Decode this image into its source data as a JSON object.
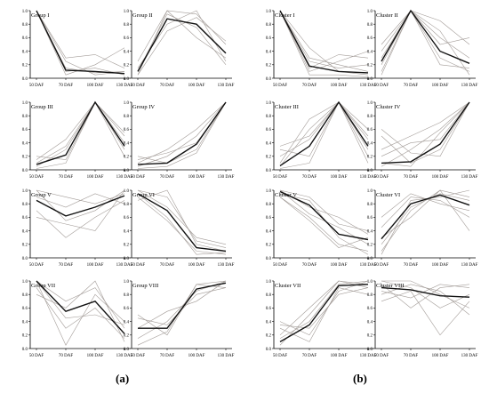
{
  "captions": {
    "a": "(a)",
    "b": "(b)"
  },
  "colors": {
    "profile": "#a39c98",
    "mean": "#111111",
    "axis": "#000000"
  },
  "chart_data": [
    {
      "type": "line",
      "panel": "a",
      "title": "Group I",
      "categories": [
        "50 DAF",
        "70 DAF",
        "100 DAF",
        "130 DAF"
      ],
      "ylim": [
        0,
        1.0
      ],
      "yticks": [
        0.0,
        0.2,
        0.4,
        0.6,
        0.8,
        1.0
      ],
      "mean": [
        1.0,
        0.12,
        0.1,
        0.07
      ],
      "profiles": [
        [
          1,
          0.1,
          0.15,
          0.05
        ],
        [
          1,
          0.25,
          0.05,
          0.1
        ],
        [
          1,
          0.05,
          0.2,
          0.45
        ],
        [
          1,
          0.3,
          0.35,
          0.15
        ],
        [
          1,
          0.15,
          0.08,
          0.1
        ]
      ]
    },
    {
      "type": "line",
      "panel": "a",
      "title": "Group II",
      "categories": [
        "50 DAF",
        "70 DAF",
        "100 DAF",
        "130 DAF"
      ],
      "ylim": [
        0,
        1.0
      ],
      "yticks": [
        0.0,
        0.2,
        0.4,
        0.6,
        0.8,
        1.0
      ],
      "mean": [
        0.1,
        0.88,
        0.8,
        0.37
      ],
      "profiles": [
        [
          0.05,
          1.0,
          0.95,
          0.5
        ],
        [
          0.15,
          0.8,
          1.0,
          0.25
        ],
        [
          0.25,
          1.0,
          0.6,
          0.3
        ],
        [
          0.05,
          0.7,
          0.9,
          0.55
        ],
        [
          0.1,
          0.95,
          0.75,
          0.2
        ]
      ]
    },
    {
      "type": "line",
      "panel": "a",
      "title": "Group III",
      "categories": [
        "50 DAF",
        "70 DAF",
        "100 DAF",
        "130 DAF"
      ],
      "ylim": [
        0,
        1.0
      ],
      "yticks": [
        0.0,
        0.2,
        0.4,
        0.6,
        0.8,
        1.0
      ],
      "mean": [
        0.08,
        0.22,
        1.0,
        0.35
      ],
      "profiles": [
        [
          0.05,
          0.3,
          1,
          0.5
        ],
        [
          0.15,
          0.45,
          1,
          0.2
        ],
        [
          0.02,
          0.1,
          1,
          0.4
        ],
        [
          0.2,
          0.15,
          1,
          0.3
        ],
        [
          0.1,
          0.35,
          1,
          0.55
        ]
      ]
    },
    {
      "type": "line",
      "panel": "a",
      "title": "Group IV",
      "categories": [
        "50 DAF",
        "70 DAF",
        "100 DAF",
        "130 DAF"
      ],
      "ylim": [
        0,
        1.0
      ],
      "yticks": [
        0.0,
        0.2,
        0.4,
        0.6,
        0.8,
        1.0
      ],
      "mean": [
        0.08,
        0.1,
        0.38,
        1.0
      ],
      "profiles": [
        [
          0.05,
          0.2,
          0.5,
          1
        ],
        [
          0.2,
          0.1,
          0.3,
          1
        ],
        [
          0.1,
          0.3,
          0.6,
          1
        ],
        [
          0.02,
          0.05,
          0.25,
          1
        ],
        [
          0.15,
          0.25,
          0.4,
          1
        ]
      ]
    },
    {
      "type": "line",
      "panel": "a",
      "title": "Group V",
      "categories": [
        "50 DAF",
        "70 DAF",
        "100 DAF",
        "130 DAF"
      ],
      "ylim": [
        0,
        1.0
      ],
      "yticks": [
        0.0,
        0.2,
        0.4,
        0.6,
        0.8,
        1.0
      ],
      "mean": [
        0.85,
        0.62,
        0.75,
        0.92
      ],
      "profiles": [
        [
          1,
          0.55,
          0.7,
          1
        ],
        [
          0.7,
          0.3,
          0.6,
          0.85
        ],
        [
          0.9,
          0.75,
          0.95,
          0.8
        ],
        [
          0.6,
          0.5,
          0.4,
          1
        ],
        [
          1,
          0.9,
          0.8,
          0.95
        ]
      ]
    },
    {
      "type": "line",
      "panel": "a",
      "title": "Group VI",
      "categories": [
        "50 DAF",
        "70 DAF",
        "100 DAF",
        "130 DAF"
      ],
      "ylim": [
        0,
        1.0
      ],
      "yticks": [
        0.0,
        0.2,
        0.4,
        0.6,
        0.8,
        1.0
      ],
      "mean": [
        0.95,
        0.7,
        0.15,
        0.1
      ],
      "profiles": [
        [
          1,
          0.9,
          0.25,
          0.15
        ],
        [
          0.9,
          0.55,
          0.1,
          0.05
        ],
        [
          1,
          0.75,
          0.3,
          0.2
        ],
        [
          0.85,
          1.0,
          0.2,
          0.1
        ],
        [
          0.95,
          0.6,
          0.05,
          0.08
        ]
      ]
    },
    {
      "type": "line",
      "panel": "a",
      "title": "Group VII",
      "categories": [
        "50 DAF",
        "70 DAF",
        "100 DAF",
        "130 DAF"
      ],
      "ylim": [
        0,
        1.0
      ],
      "yticks": [
        0.0,
        0.2,
        0.4,
        0.6,
        0.8,
        1.0
      ],
      "mean": [
        1.0,
        0.55,
        0.7,
        0.22
      ],
      "profiles": [
        [
          1,
          0.7,
          0.9,
          0.3
        ],
        [
          0.9,
          0.3,
          0.6,
          0.15
        ],
        [
          1,
          0.05,
          0.8,
          0.4
        ],
        [
          0.8,
          0.6,
          1.0,
          0.1
        ],
        [
          1,
          0.45,
          0.5,
          0.35
        ]
      ]
    },
    {
      "type": "line",
      "panel": "a",
      "title": "Group VIII",
      "categories": [
        "50 DAF",
        "70 DAF",
        "100 DAF",
        "130 DAF"
      ],
      "ylim": [
        0,
        1.0
      ],
      "yticks": [
        0.0,
        0.2,
        0.4,
        0.6,
        0.8,
        1.0
      ],
      "mean": [
        0.3,
        0.3,
        0.88,
        0.97
      ],
      "profiles": [
        [
          0.15,
          0.4,
          0.85,
          1
        ],
        [
          0.5,
          0.2,
          0.95,
          0.9
        ],
        [
          0.3,
          0.55,
          0.7,
          1
        ],
        [
          0.05,
          0.25,
          0.95,
          1
        ],
        [
          0.45,
          0.35,
          0.8,
          0.9
        ]
      ]
    },
    {
      "type": "line",
      "panel": "b",
      "title": "Cluster I",
      "categories": [
        "50 DAF",
        "70 DAF",
        "100 DAF",
        "130 DAF"
      ],
      "ylim": [
        0,
        1.0
      ],
      "yticks": [
        0.0,
        0.2,
        0.4,
        0.6,
        0.8,
        1.0
      ],
      "mean": [
        1.0,
        0.18,
        0.1,
        0.08
      ],
      "profiles": [
        [
          1,
          0.05,
          0.05,
          0.02
        ],
        [
          1,
          0.3,
          0.2,
          0.1
        ],
        [
          1,
          0.45,
          0.1,
          0.05
        ],
        [
          1,
          0.15,
          0.35,
          0.3
        ],
        [
          1,
          0.25,
          0.15,
          0.2
        ],
        [
          1,
          0.1,
          0.25,
          0.4
        ]
      ]
    },
    {
      "type": "line",
      "panel": "b",
      "title": "Cluster II",
      "categories": [
        "50 DAF",
        "70 DAF",
        "100 DAF",
        "130 DAF"
      ],
      "ylim": [
        0,
        1.0
      ],
      "yticks": [
        0.0,
        0.2,
        0.4,
        0.6,
        0.8,
        1.0
      ],
      "mean": [
        0.25,
        1.0,
        0.4,
        0.22
      ],
      "profiles": [
        [
          0.1,
          1,
          0.6,
          0.3
        ],
        [
          0.5,
          1,
          0.3,
          0.1
        ],
        [
          0.3,
          1,
          0.85,
          0.5
        ],
        [
          0.05,
          1,
          0.2,
          0.15
        ],
        [
          0.4,
          1,
          0.5,
          0.6
        ],
        [
          0.2,
          1,
          0.7,
          0.05
        ]
      ]
    },
    {
      "type": "line",
      "panel": "b",
      "title": "Cluster III",
      "categories": [
        "50 DAF",
        "70 DAF",
        "100 DAF",
        "130 DAF"
      ],
      "ylim": [
        0,
        1.0
      ],
      "yticks": [
        0.0,
        0.2,
        0.4,
        0.6,
        0.8,
        1.0
      ],
      "mean": [
        0.06,
        0.35,
        1.0,
        0.35
      ],
      "profiles": [
        [
          0.05,
          0.6,
          1,
          0.5
        ],
        [
          0.3,
          0.2,
          1,
          0.2
        ],
        [
          0.1,
          0.75,
          1,
          0.6
        ],
        [
          0.2,
          0.45,
          1,
          0.1
        ],
        [
          0.02,
          0.1,
          1,
          0.45
        ],
        [
          0.35,
          0.5,
          1,
          0.3
        ]
      ]
    },
    {
      "type": "line",
      "panel": "b",
      "title": "Cluster IV",
      "categories": [
        "50 DAF",
        "70 DAF",
        "100 DAF",
        "130 DAF"
      ],
      "ylim": [
        0,
        1.0
      ],
      "yticks": [
        0.0,
        0.2,
        0.4,
        0.6,
        0.8,
        1.0
      ],
      "mean": [
        0.1,
        0.12,
        0.38,
        1.0
      ],
      "profiles": [
        [
          0.05,
          0.3,
          0.6,
          1
        ],
        [
          0.5,
          0.1,
          0.3,
          1
        ],
        [
          0.2,
          0.4,
          0.45,
          1
        ],
        [
          0.6,
          0.25,
          0.2,
          1
        ],
        [
          0.1,
          0.05,
          0.55,
          1
        ],
        [
          0.3,
          0.5,
          0.7,
          1
        ]
      ]
    },
    {
      "type": "line",
      "panel": "b",
      "title": "Cluster V",
      "categories": [
        "50 DAF",
        "70 DAF",
        "100 DAF",
        "130 DAF"
      ],
      "ylim": [
        0,
        1.0
      ],
      "yticks": [
        0.0,
        0.2,
        0.4,
        0.6,
        0.8,
        1.0
      ],
      "mean": [
        0.98,
        0.78,
        0.35,
        0.27
      ],
      "profiles": [
        [
          1,
          0.9,
          0.5,
          0.4
        ],
        [
          0.9,
          0.6,
          0.2,
          0.1
        ],
        [
          1,
          0.75,
          0.6,
          0.35
        ],
        [
          0.95,
          0.85,
          0.3,
          0.05
        ],
        [
          1,
          0.65,
          0.45,
          0.2
        ],
        [
          0.9,
          0.55,
          0.15,
          0.3
        ]
      ]
    },
    {
      "type": "line",
      "panel": "b",
      "title": "Cluster VI",
      "categories": [
        "50 DAF",
        "70 DAF",
        "100 DAF",
        "130 DAF"
      ],
      "ylim": [
        0,
        1.0
      ],
      "yticks": [
        0.0,
        0.2,
        0.4,
        0.6,
        0.8,
        1.0
      ],
      "mean": [
        0.28,
        0.8,
        0.93,
        0.78
      ],
      "profiles": [
        [
          0.1,
          0.7,
          1,
          0.9
        ],
        [
          0.6,
          0.95,
          0.8,
          0.7
        ],
        [
          0.3,
          0.6,
          1,
          0.4
        ],
        [
          0.05,
          0.85,
          0.9,
          1
        ],
        [
          0.45,
          0.9,
          0.85,
          0.6
        ],
        [
          0.2,
          0.75,
          0.95,
          0.85
        ]
      ]
    },
    {
      "type": "line",
      "panel": "b",
      "title": "Cluster VII",
      "categories": [
        "50 DAF",
        "70 DAF",
        "100 DAF",
        "130 DAF"
      ],
      "ylim": [
        0,
        1.0
      ],
      "yticks": [
        0.0,
        0.2,
        0.4,
        0.6,
        0.8,
        1.0
      ],
      "mean": [
        0.1,
        0.35,
        0.93,
        0.95
      ],
      "profiles": [
        [
          0.05,
          0.5,
          1,
          0.9
        ],
        [
          0.4,
          0.2,
          0.85,
          1
        ],
        [
          0.2,
          0.6,
          1,
          0.95
        ],
        [
          0.3,
          0.1,
          0.9,
          0.8
        ],
        [
          0.15,
          0.4,
          0.95,
          1
        ],
        [
          0.35,
          0.3,
          0.8,
          0.9
        ]
      ]
    },
    {
      "type": "line",
      "panel": "b",
      "title": "Cluster VIII",
      "categories": [
        "50 DAF",
        "70 DAF",
        "100 DAF",
        "130 DAF"
      ],
      "ylim": [
        0,
        1.0
      ],
      "yticks": [
        0.0,
        0.2,
        0.4,
        0.6,
        0.8,
        1.0
      ],
      "mean": [
        0.9,
        0.87,
        0.78,
        0.76
      ],
      "profiles": [
        [
          1,
          0.9,
          0.6,
          0.8
        ],
        [
          0.8,
          0.95,
          0.85,
          0.5
        ],
        [
          0.95,
          0.6,
          0.9,
          0.95
        ],
        [
          0.7,
          0.85,
          0.2,
          0.7
        ],
        [
          1,
          1,
          0.8,
          0.6
        ],
        [
          0.85,
          0.75,
          0.95,
          0.9
        ]
      ]
    }
  ]
}
